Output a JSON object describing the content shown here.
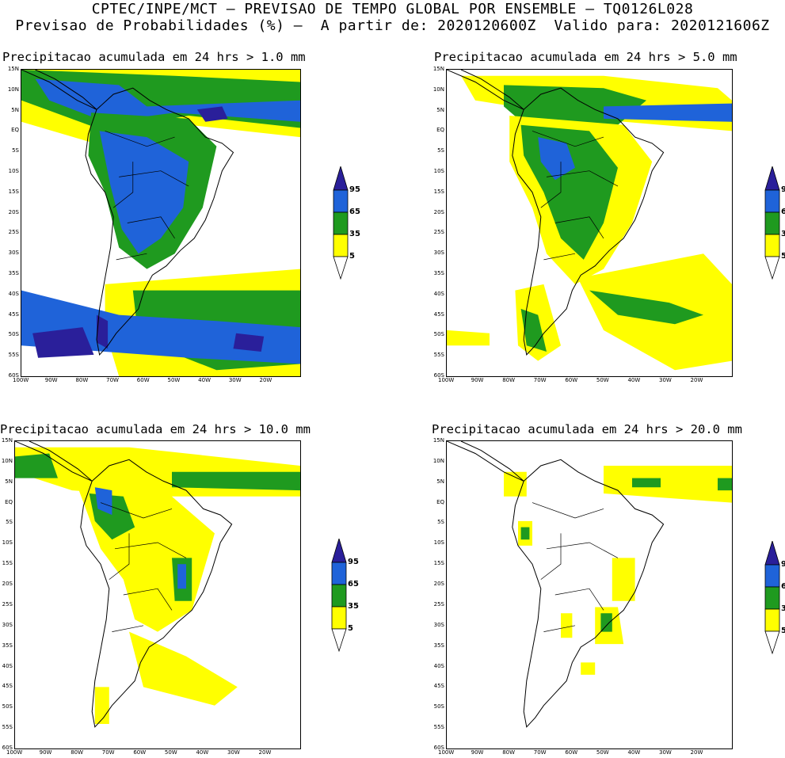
{
  "header": {
    "line1": "CPTEC/INPE/MCT – PREVISAO DE TEMPO GLOBAL POR ENSEMBLE – TQ0126L028",
    "line2": "Previsao de Probabilidades (%) –  A partir de: 2020120600Z  Valido para: 2020121606Z"
  },
  "panels": [
    {
      "title": "Precipitacao acumulada em 24 hrs > 1.0 mm"
    },
    {
      "title": "Precipitacao acumulada em 24 hrs > 5.0 mm"
    },
    {
      "title": "Precipitacao acumulada em 24 hrs > 10.0 mm"
    },
    {
      "title": "Precipitacao acumulada em 24 hrs > 20.0 mm"
    }
  ],
  "lat_labels": [
    "15N",
    "10N",
    "5N",
    "EQ",
    "5S",
    "10S",
    "15S",
    "20S",
    "25S",
    "30S",
    "35S",
    "40S",
    "45S",
    "50S",
    "55S",
    "60S"
  ],
  "lon_labels": [
    "100W",
    "90W",
    "80W",
    "70W",
    "60W",
    "50W",
    "40W",
    "30W",
    "20W"
  ],
  "colorbar": {
    "labels": [
      "95",
      "65",
      "35",
      "5"
    ],
    "colors": {
      "c95": "#2a1f9a",
      "c65": "#1f63d9",
      "c35": "#1f9a1f",
      "c5": "#ffff00"
    }
  }
}
